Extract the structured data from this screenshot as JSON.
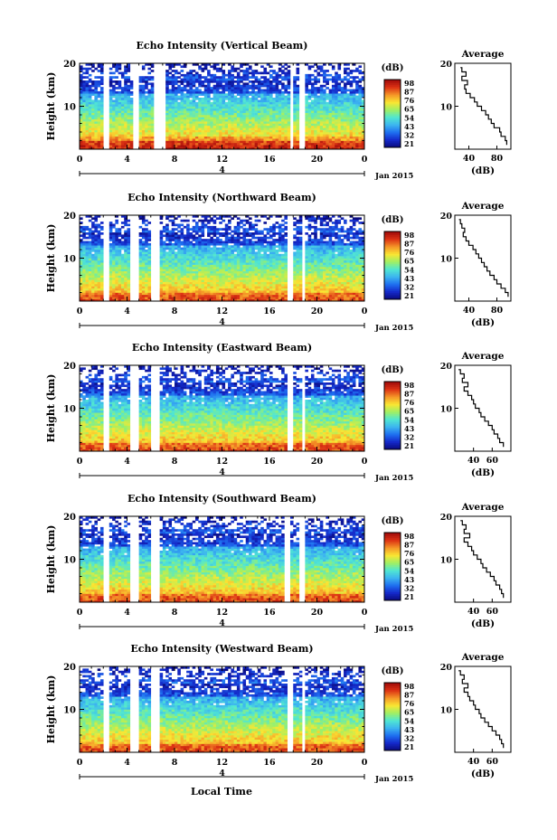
{
  "figure": {
    "xlabel": "Local Time",
    "date_label": "Jan 2015",
    "center_date": "4",
    "colorbar_unit": "(dB)",
    "colorbar_ticks": [
      "21",
      "32",
      "43",
      "54",
      "65",
      "76",
      "87",
      "98"
    ],
    "avg_title": "Average",
    "avg_xlabel": "(dB)",
    "colormap": [
      "#0a0a7a",
      "#1428c8",
      "#1e6ef0",
      "#3cb4f0",
      "#50e6d2",
      "#a0f064",
      "#fae632",
      "#f59628",
      "#dc3214",
      "#a00a0a"
    ]
  },
  "chart_data": [
    {
      "type": "heatmap",
      "title": "Echo Intensity (Vertical Beam)",
      "ylabel": "Height (km)",
      "x_ticks": [
        "0",
        "4",
        "8",
        "12",
        "16",
        "20",
        "0"
      ],
      "y_ticks": [
        "10",
        "20"
      ],
      "xlim": [
        0,
        24
      ],
      "ylim": [
        0,
        20
      ],
      "clim": [
        21,
        98
      ],
      "gap_hours": [
        [
          2.0,
          2.6
        ],
        [
          4.4,
          5.0
        ],
        [
          6.2,
          7.2
        ],
        [
          17.7,
          18.0
        ],
        [
          18.6,
          19.0
        ]
      ],
      "average_profile": {
        "x_ticks": [
          "40",
          "80"
        ],
        "xlim": [
          20,
          100
        ],
        "ylim": [
          0,
          20
        ],
        "height_km": [
          1,
          2,
          3,
          4,
          5,
          6,
          7,
          8,
          9,
          10,
          11,
          12,
          13,
          14,
          15,
          16,
          17,
          18,
          19
        ],
        "value_db": [
          94,
          92,
          86,
          84,
          76,
          72,
          68,
          64,
          58,
          52,
          48,
          42,
          36,
          34,
          38,
          30,
          36,
          30,
          28
        ]
      }
    },
    {
      "type": "heatmap",
      "title": "Echo Intensity (Northward Beam)",
      "ylabel": "Height (km)",
      "x_ticks": [
        "0",
        "4",
        "8",
        "12",
        "16",
        "20",
        "0"
      ],
      "y_ticks": [
        "10",
        "20"
      ],
      "xlim": [
        0,
        24
      ],
      "ylim": [
        0,
        20
      ],
      "clim": [
        21,
        98
      ],
      "gap_hours": [
        [
          1.9,
          2.5
        ],
        [
          4.3,
          4.9
        ],
        [
          6.0,
          6.8
        ],
        [
          17.5,
          17.9
        ],
        [
          18.8,
          19.1
        ]
      ],
      "average_profile": {
        "x_ticks": [
          "40",
          "80"
        ],
        "xlim": [
          20,
          100
        ],
        "ylim": [
          0,
          20
        ],
        "height_km": [
          1,
          2,
          3,
          4,
          5,
          6,
          7,
          8,
          9,
          10,
          11,
          12,
          13,
          14,
          15,
          16,
          17,
          18,
          19
        ],
        "value_db": [
          96,
          92,
          86,
          80,
          76,
          70,
          66,
          62,
          58,
          54,
          50,
          46,
          40,
          36,
          32,
          34,
          30,
          28,
          26
        ]
      }
    },
    {
      "type": "heatmap",
      "title": "Echo Intensity (Eastward Beam)",
      "ylabel": "Height (km)",
      "x_ticks": [
        "0",
        "4",
        "8",
        "12",
        "16",
        "20",
        "0"
      ],
      "y_ticks": [
        "10",
        "20"
      ],
      "xlim": [
        0,
        24
      ],
      "ylim": [
        0,
        20
      ],
      "clim": [
        21,
        98
      ],
      "gap_hours": [
        [
          1.9,
          2.5
        ],
        [
          4.3,
          4.9
        ],
        [
          6.0,
          6.8
        ],
        [
          17.5,
          17.9
        ],
        [
          18.8,
          19.1
        ]
      ],
      "average_profile": {
        "x_ticks": [
          "40",
          "60"
        ],
        "xlim": [
          20,
          80
        ],
        "ylim": [
          0,
          20
        ],
        "height_km": [
          1,
          2,
          3,
          4,
          5,
          6,
          7,
          8,
          9,
          10,
          11,
          12,
          13,
          14,
          15,
          16,
          17,
          18,
          19
        ],
        "value_db": [
          72,
          68,
          66,
          62,
          60,
          56,
          52,
          48,
          46,
          42,
          40,
          38,
          34,
          30,
          34,
          28,
          30,
          26,
          24
        ]
      }
    },
    {
      "type": "heatmap",
      "title": "Echo Intensity (Southward Beam)",
      "ylabel": "Height (km)",
      "x_ticks": [
        "0",
        "4",
        "8",
        "12",
        "16",
        "20",
        "0"
      ],
      "y_ticks": [
        "10",
        "20"
      ],
      "xlim": [
        0,
        24
      ],
      "ylim": [
        0,
        20
      ],
      "clim": [
        21,
        98
      ],
      "gap_hours": [
        [
          1.9,
          2.5
        ],
        [
          4.3,
          4.9
        ],
        [
          6.0,
          6.8
        ],
        [
          17.3,
          17.7
        ],
        [
          18.6,
          18.9
        ]
      ],
      "average_profile": {
        "x_ticks": [
          "40",
          "60"
        ],
        "xlim": [
          20,
          80
        ],
        "ylim": [
          0,
          20
        ],
        "height_km": [
          1,
          2,
          3,
          4,
          5,
          6,
          7,
          8,
          9,
          10,
          11,
          12,
          13,
          14,
          15,
          16,
          17,
          18,
          19
        ],
        "value_db": [
          72,
          70,
          68,
          64,
          62,
          58,
          54,
          50,
          48,
          44,
          40,
          38,
          34,
          30,
          36,
          30,
          32,
          28,
          26
        ]
      }
    },
    {
      "type": "heatmap",
      "title": "Echo Intensity (Westward Beam)",
      "ylabel": "Height (km)",
      "x_ticks": [
        "0",
        "4",
        "8",
        "12",
        "16",
        "20",
        "0"
      ],
      "y_ticks": [
        "10",
        "20"
      ],
      "xlim": [
        0,
        24
      ],
      "ylim": [
        0,
        20
      ],
      "clim": [
        21,
        98
      ],
      "gap_hours": [
        [
          1.9,
          2.5
        ],
        [
          4.3,
          4.9
        ],
        [
          6.0,
          6.8
        ],
        [
          17.5,
          17.9
        ],
        [
          18.8,
          19.1
        ]
      ],
      "average_profile": {
        "x_ticks": [
          "40",
          "60"
        ],
        "xlim": [
          20,
          80
        ],
        "ylim": [
          0,
          20
        ],
        "height_km": [
          1,
          2,
          3,
          4,
          5,
          6,
          7,
          8,
          9,
          10,
          11,
          12,
          13,
          14,
          15,
          16,
          17,
          18,
          19
        ],
        "value_db": [
          72,
          70,
          68,
          64,
          60,
          56,
          52,
          48,
          46,
          42,
          40,
          36,
          34,
          30,
          34,
          28,
          30,
          26,
          24
        ]
      }
    }
  ]
}
